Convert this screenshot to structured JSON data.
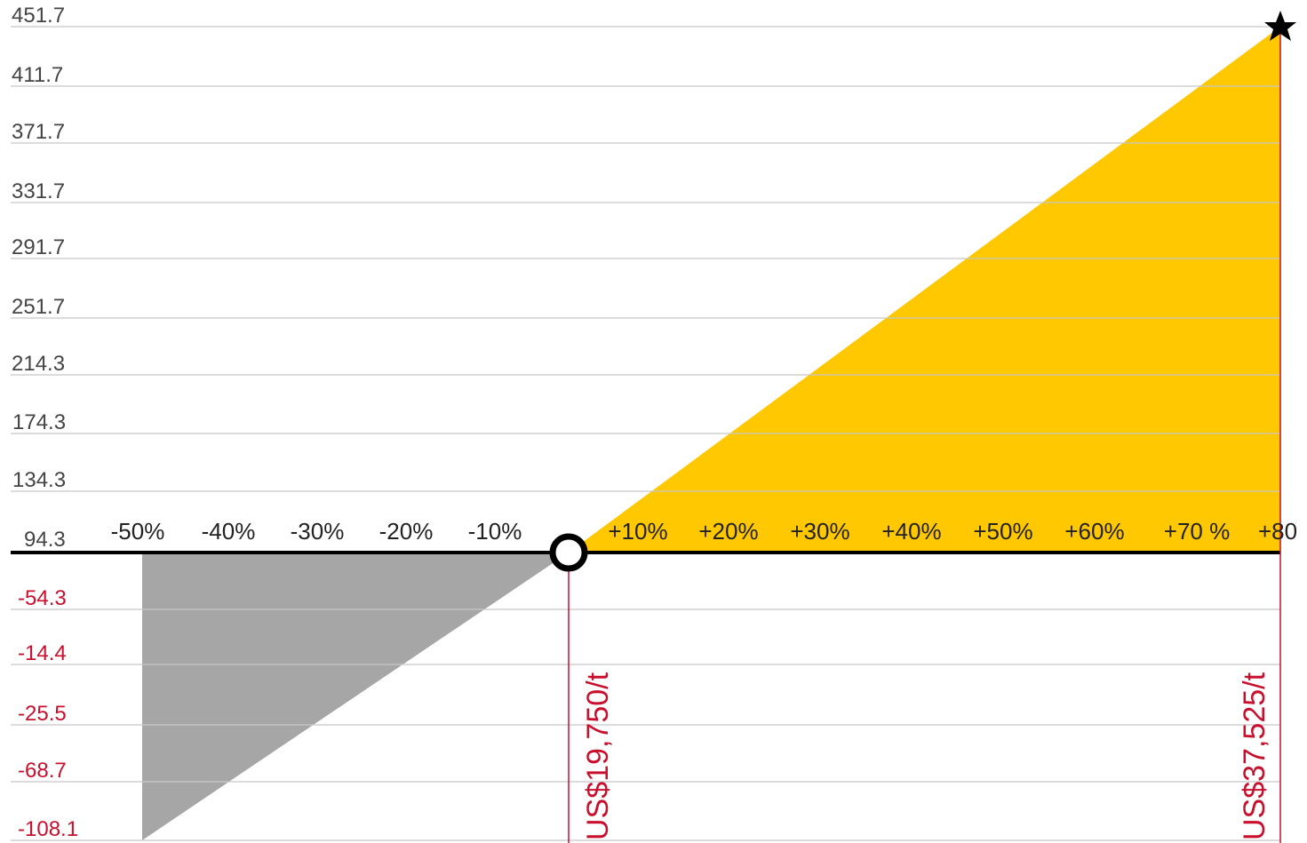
{
  "y_labels": {
    "positive": [
      "451.7",
      "411.7",
      "371.7",
      "331.7",
      "291.7",
      "251.7",
      "214.3",
      "174.3",
      "134.3",
      "94.3"
    ],
    "negative": [
      "-54.3",
      "-14.4",
      "-25.5",
      "-68.7",
      "-108.1"
    ]
  },
  "x_labels": {
    "negative": [
      "-50%",
      "-40%",
      "-30%",
      "-20%",
      "-10%"
    ],
    "positive": [
      "+10%",
      "+20%",
      "+30%",
      "+40%",
      "+50%",
      "+60%",
      "+70 %",
      "+80"
    ]
  },
  "price_labels": [
    "US$19,750/t",
    "US$37,525/t"
  ]
}
